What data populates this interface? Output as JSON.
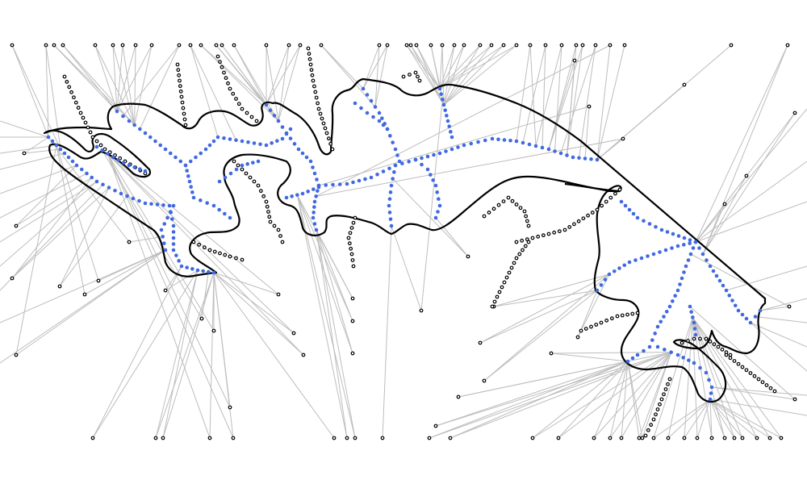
{
  "figure": {
    "kind": "medial-axis skeleton diagram",
    "colors": {
      "background": "#ffffff",
      "edges": "#bdbdbd",
      "boundary": "#000000",
      "inner_points": "#4169e1",
      "outer_points": "#000000"
    }
  }
}
